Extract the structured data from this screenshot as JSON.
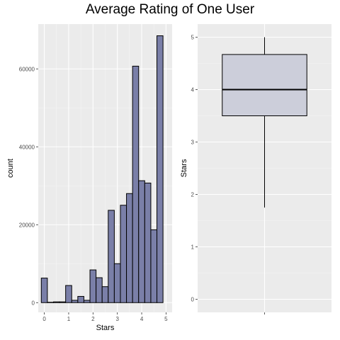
{
  "title": "Average Rating of One User",
  "chart_data": [
    {
      "type": "bar",
      "subtype": "histogram",
      "xlabel": "Stars",
      "ylabel": "count",
      "x_ticks": [
        0,
        1,
        2,
        3,
        4,
        5
      ],
      "y_ticks": [
        0,
        20000,
        40000,
        60000
      ],
      "xlim": [
        -0.25,
        5.25
      ],
      "ylim": [
        -2500,
        71500
      ],
      "bin_width": 0.25,
      "bins": [
        {
          "x": 0.0,
          "count": 6300
        },
        {
          "x": 0.25,
          "count": 100
        },
        {
          "x": 0.5,
          "count": 200
        },
        {
          "x": 0.75,
          "count": 200
        },
        {
          "x": 1.0,
          "count": 4400
        },
        {
          "x": 1.25,
          "count": 600
        },
        {
          "x": 1.5,
          "count": 1600
        },
        {
          "x": 1.75,
          "count": 600
        },
        {
          "x": 2.0,
          "count": 8400
        },
        {
          "x": 2.25,
          "count": 6400
        },
        {
          "x": 2.5,
          "count": 4100
        },
        {
          "x": 2.75,
          "count": 23700
        },
        {
          "x": 3.0,
          "count": 10000
        },
        {
          "x": 3.25,
          "count": 25000
        },
        {
          "x": 3.5,
          "count": 28000
        },
        {
          "x": 3.75,
          "count": 60700
        },
        {
          "x": 4.0,
          "count": 31300
        },
        {
          "x": 4.25,
          "count": 30700
        },
        {
          "x": 4.5,
          "count": 18700
        },
        {
          "x": 4.75,
          "count": 68500
        }
      ],
      "fill": "#7a7fa8",
      "stroke": "#000000",
      "background": "#ebebeb",
      "grid": true
    },
    {
      "type": "boxplot",
      "ylabel": "Stars",
      "y_ticks": [
        0,
        1,
        2,
        3,
        4,
        5
      ],
      "ylim": [
        -0.25,
        5.25
      ],
      "whisker_low": 1.75,
      "q1": 3.5,
      "median": 4.0,
      "q3": 4.67,
      "whisker_high": 5.0,
      "fill": "#ccceda",
      "stroke": "#000000",
      "background": "#ebebeb",
      "grid": true
    }
  ]
}
